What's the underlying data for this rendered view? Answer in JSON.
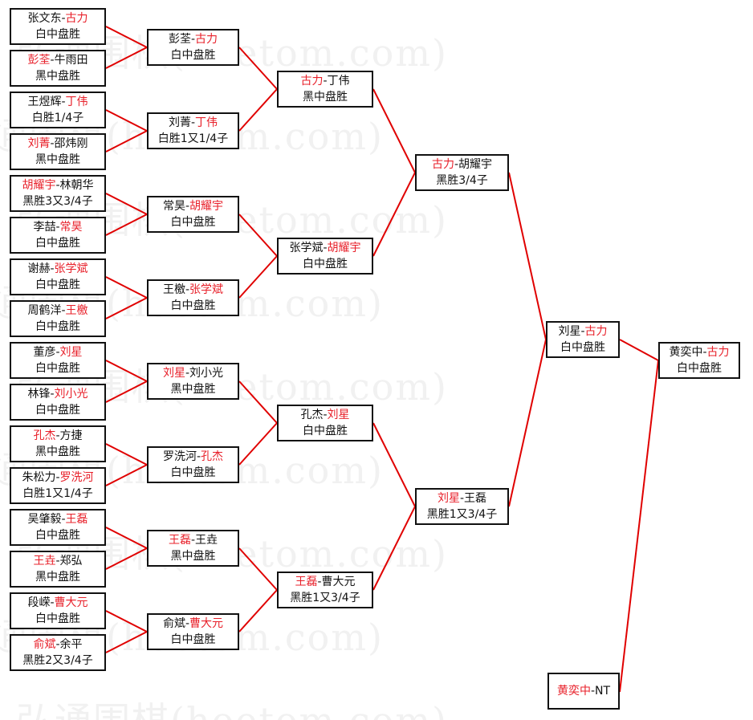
{
  "watermark": "弘通围棋(hoetom.com)",
  "colors": {
    "winner": "#e8202a",
    "connector": "#e00000",
    "border": "#111111"
  },
  "rounds": [
    [
      {
        "p1": "张文东",
        "p2": "古力",
        "winner": 2,
        "result": "白中盘胜"
      },
      {
        "p1": "彭荃",
        "p2": "牛雨田",
        "winner": 1,
        "result": "黑中盘胜"
      },
      {
        "p1": "王煜辉",
        "p2": "丁伟",
        "winner": 2,
        "result": "白胜1/4子"
      },
      {
        "p1": "刘菁",
        "p2": "邵炜刚",
        "winner": 1,
        "result": "黑中盘胜"
      },
      {
        "p1": "胡耀宇",
        "p2": "林朝华",
        "winner": 1,
        "result": "黑胜3又3/4子"
      },
      {
        "p1": "李喆",
        "p2": "常昊",
        "winner": 2,
        "result": "白中盘胜"
      },
      {
        "p1": "谢赫",
        "p2": "张学斌",
        "winner": 2,
        "result": "白中盘胜"
      },
      {
        "p1": "周鹤洋",
        "p2": "王檄",
        "winner": 2,
        "result": "白中盘胜"
      },
      {
        "p1": "董彦",
        "p2": "刘星",
        "winner": 2,
        "result": "白中盘胜"
      },
      {
        "p1": "林锋",
        "p2": "刘小光",
        "winner": 2,
        "result": "白中盘胜"
      },
      {
        "p1": "孔杰",
        "p2": "方捷",
        "winner": 1,
        "result": "黑中盘胜"
      },
      {
        "p1": "朱松力",
        "p2": "罗洗河",
        "winner": 2,
        "result": "白胜1又1/4子"
      },
      {
        "p1": "吴肇毅",
        "p2": "王磊",
        "winner": 2,
        "result": "白中盘胜"
      },
      {
        "p1": "王垚",
        "p2": "郑弘",
        "winner": 1,
        "result": "黑中盘胜"
      },
      {
        "p1": "段嵘",
        "p2": "曹大元",
        "winner": 2,
        "result": "白中盘胜"
      },
      {
        "p1": "俞斌",
        "p2": "余平",
        "winner": 1,
        "result": "黑胜2又3/4子"
      }
    ],
    [
      {
        "p1": "彭荃",
        "p2": "古力",
        "winner": 2,
        "result": "白中盘胜"
      },
      {
        "p1": "刘菁",
        "p2": "丁伟",
        "winner": 2,
        "result": "白胜1又1/4子"
      },
      {
        "p1": "常昊",
        "p2": "胡耀宇",
        "winner": 2,
        "result": "白中盘胜"
      },
      {
        "p1": "王檄",
        "p2": "张学斌",
        "winner": 2,
        "result": "白中盘胜"
      },
      {
        "p1": "刘星",
        "p2": "刘小光",
        "winner": 1,
        "result": "黑中盘胜"
      },
      {
        "p1": "罗洗河",
        "p2": "孔杰",
        "winner": 2,
        "result": "白中盘胜"
      },
      {
        "p1": "王磊",
        "p2": "王垚",
        "winner": 1,
        "result": "黑中盘胜"
      },
      {
        "p1": "俞斌",
        "p2": "曹大元",
        "winner": 2,
        "result": "白中盘胜"
      }
    ],
    [
      {
        "p1": "古力",
        "p2": "丁伟",
        "winner": 1,
        "result": "黑中盘胜"
      },
      {
        "p1": "张学斌",
        "p2": "胡耀宇",
        "winner": 2,
        "result": "白中盘胜"
      },
      {
        "p1": "孔杰",
        "p2": "刘星",
        "winner": 2,
        "result": "白中盘胜"
      },
      {
        "p1": "王磊",
        "p2": "曹大元",
        "winner": 1,
        "result": "黑胜1又3/4子"
      }
    ],
    [
      {
        "p1": "古力",
        "p2": "胡耀宇",
        "winner": 1,
        "result": "黑胜3/4子"
      },
      {
        "p1": "刘星",
        "p2": "王磊",
        "winner": 1,
        "result": "黑胜1又3/4子"
      }
    ],
    [
      {
        "p1": "刘星",
        "p2": "古力",
        "winner": 2,
        "result": "白中盘胜"
      }
    ]
  ],
  "final": {
    "p1": "黄奕中",
    "p2": "古力",
    "winner": 2,
    "result": "白中盘胜"
  },
  "seed": {
    "p1": "黄奕中",
    "p2": "NT",
    "winner": 1,
    "result": ""
  }
}
